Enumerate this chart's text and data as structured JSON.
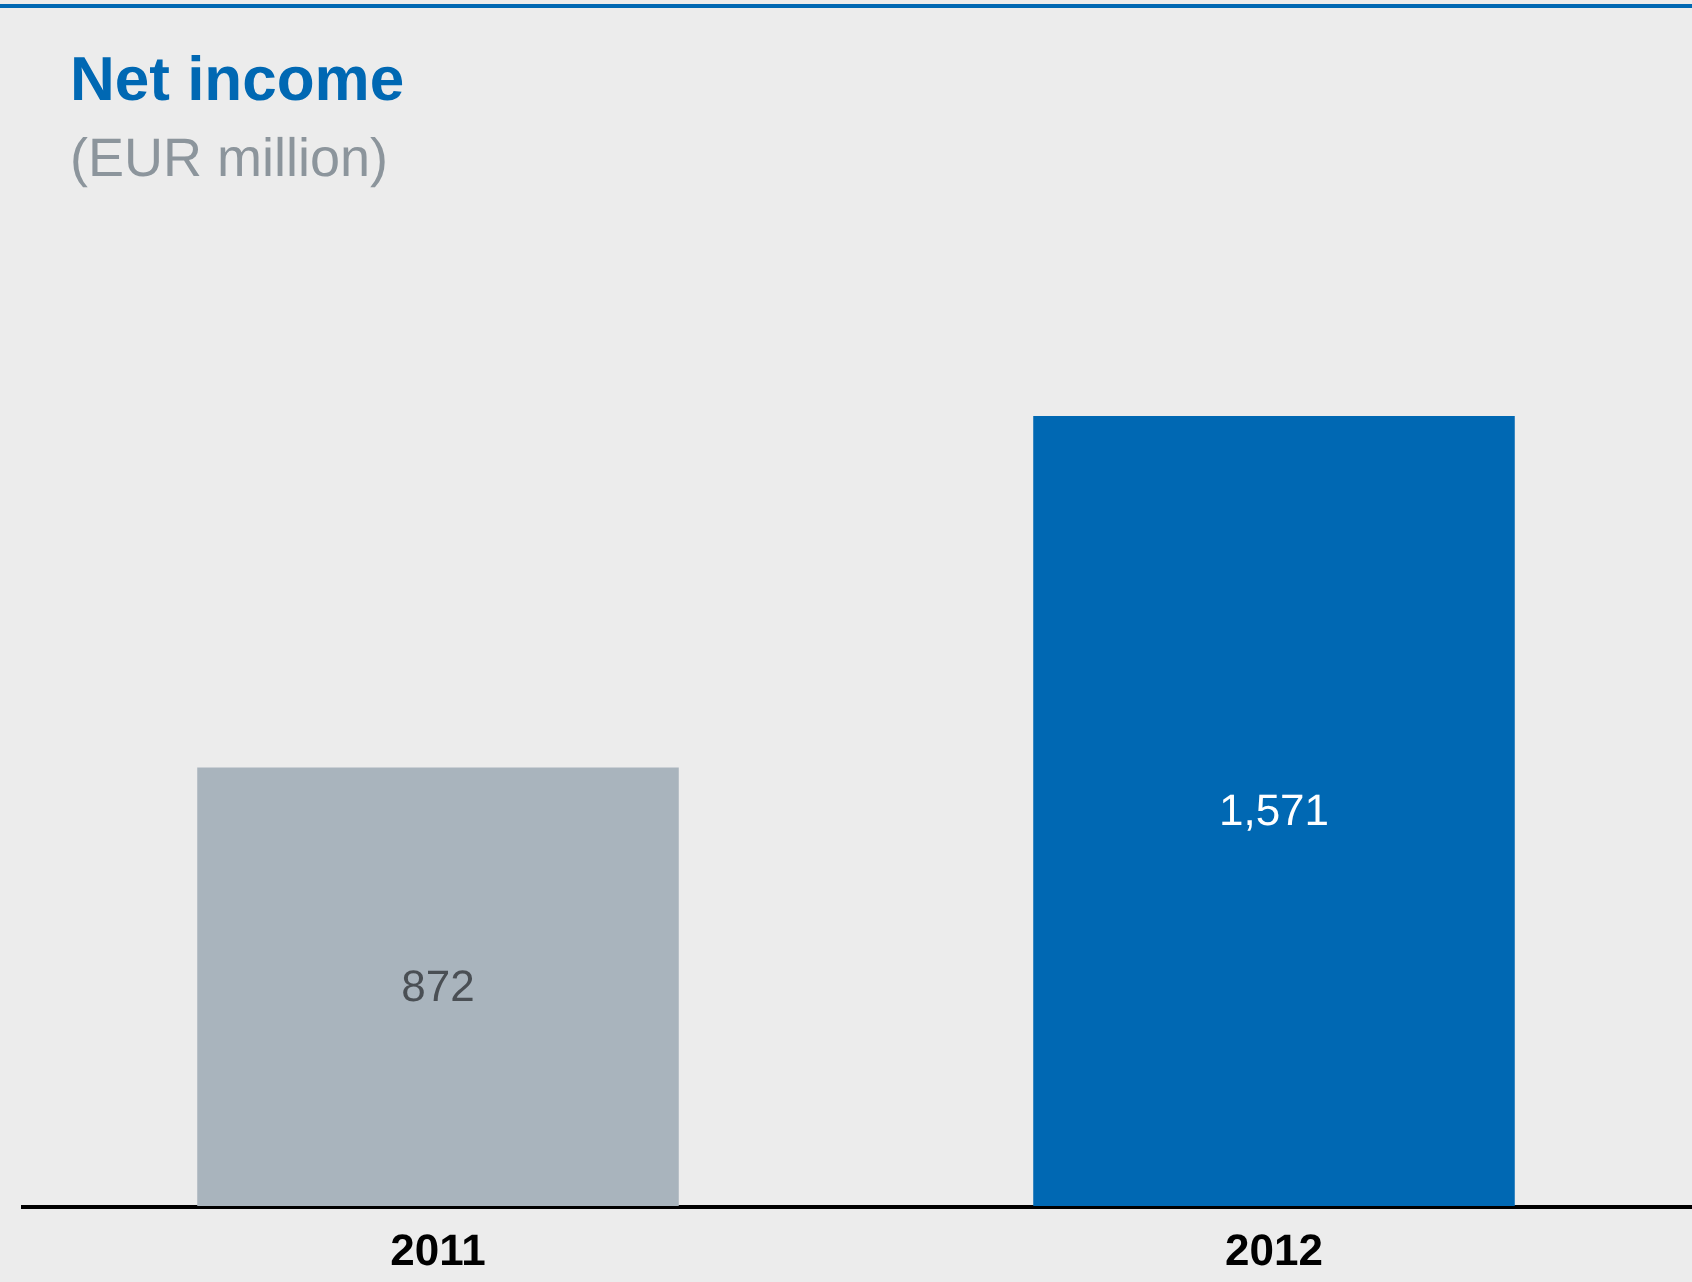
{
  "chart_data": {
    "type": "bar",
    "title": "Net income",
    "subtitle": "(EUR million)",
    "categories": [
      "2011",
      "2012"
    ],
    "values": [
      872,
      1571
    ],
    "colors": [
      "#a9b4bd",
      "#0068b3"
    ],
    "value_labels": [
      "872",
      "1,571"
    ]
  }
}
